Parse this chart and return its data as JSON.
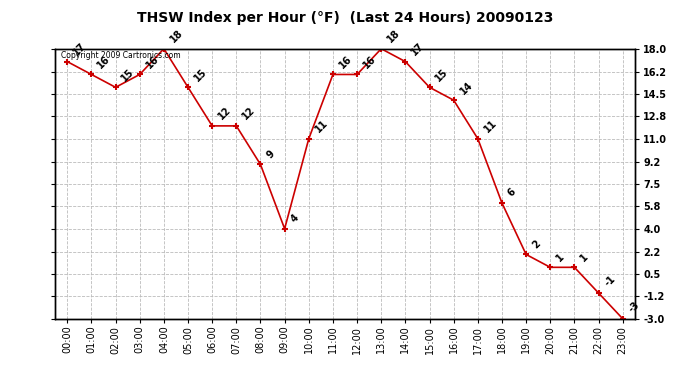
{
  "title": "THSW Index per Hour (°F)  (Last 24 Hours) 20090123",
  "copyright": "Copyright 2009 Cartronics.com",
  "hours": [
    "00:00",
    "01:00",
    "02:00",
    "03:00",
    "04:00",
    "05:00",
    "06:00",
    "07:00",
    "08:00",
    "09:00",
    "10:00",
    "11:00",
    "12:00",
    "13:00",
    "14:00",
    "15:00",
    "16:00",
    "17:00",
    "18:00",
    "19:00",
    "20:00",
    "21:00",
    "22:00",
    "23:00"
  ],
  "values": [
    17,
    16,
    15,
    16,
    18,
    15,
    12,
    12,
    9,
    4,
    11,
    16,
    16,
    18,
    17,
    15,
    14,
    11,
    6,
    2,
    1,
    1,
    -1,
    -3
  ],
  "ylim": [
    -3.0,
    18.0
  ],
  "yticks": [
    -3.0,
    -1.2,
    0.5,
    2.2,
    4.0,
    5.8,
    7.5,
    9.2,
    11.0,
    12.8,
    14.5,
    16.2,
    18.0
  ],
  "ytick_labels": [
    "-3.0",
    "-1.2",
    "0.5",
    "2.2",
    "4.0",
    "5.8",
    "7.5",
    "9.2",
    "11.0",
    "12.8",
    "14.5",
    "16.2",
    "18.0"
  ],
  "line_color": "#cc0000",
  "marker_color": "#cc0000",
  "bg_color": "#ffffff",
  "plot_bg_color": "#ffffff",
  "grid_color": "#bbbbbb",
  "title_fontsize": 10,
  "tick_fontsize": 7,
  "label_fontsize": 7
}
